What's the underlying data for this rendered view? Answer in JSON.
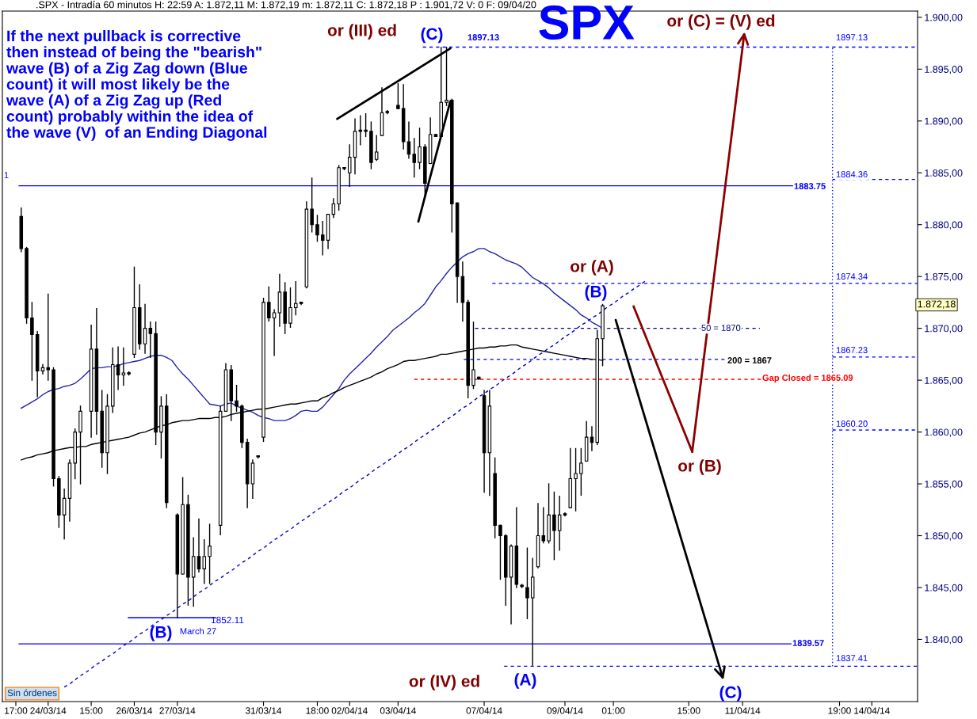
{
  "chart_data": {
    "type": "candlestick",
    "title": "SPX",
    "color": "#000000",
    "annotations": [
      ".SPX - Intradía 60 minutos H: 22:59 A: 1.872,11 M: 1.872,19 m: 1.872,11 C: 1.872,18 P : 1.901,72 V: 0 F: 09/04/20",
      "If the next pullback is corrective\nthen instead of being the \"bearish\"\nwave (B) of a Zig Zag down (Blue\ncount) it will most likely be the\nwave (A) of a Zig Zag up (Red\ncount) probably within the idea of\nthe wave (V)  of an Ending Diagonal",
      "Sin órdenes",
      "1.872,18",
      "1",
      "or (III) ed",
      {
        "text": "(C)",
        "y": 1897.1
      },
      "or (C) = (V) ed",
      "or (A)",
      "(B)",
      "or (B)",
      "1852.11",
      "(B)",
      "March 27",
      "or (IV) ed",
      "(A)",
      "(C)",
      "1897.13"
    ],
    "categories": [
      "17:00",
      null,
      null,
      null,
      null,
      null,
      "24/03/14",
      null,
      null,
      null,
      null,
      null,
      null,
      null,
      "15:00",
      null,
      null,
      null,
      null,
      null,
      null,
      null,
      "26/03/14",
      null,
      null,
      null,
      null,
      null,
      null,
      null,
      "27/03/14",
      null,
      null,
      null,
      null,
      null,
      null,
      null,
      null,
      null,
      null,
      null,
      null,
      null,
      null,
      null,
      "31/03/14",
      null,
      null,
      null,
      null,
      null,
      null,
      null,
      null,
      null,
      "18:00",
      null,
      null,
      null,
      null,
      null,
      "02/04/14",
      null,
      null,
      null,
      null,
      null,
      null,
      null,
      null,
      "03/04/14",
      null,
      null,
      null,
      null,
      null,
      null,
      null,
      null,
      null,
      null,
      null,
      null,
      null,
      null,
      null,
      "07/04/14",
      null,
      null,
      null,
      null,
      null,
      null,
      null,
      null,
      null,
      null,
      null,
      null,
      null,
      null,
      "09/04/14",
      null,
      null,
      null,
      null,
      null,
      null,
      null,
      null,
      "01:00",
      null,
      null,
      null,
      null,
      null,
      null,
      null,
      null,
      null,
      null,
      null,
      null,
      null,
      "15:00",
      null,
      null,
      null,
      null,
      null,
      null,
      null,
      null,
      null,
      "11/04/14",
      null,
      null,
      null,
      null,
      null,
      null,
      null,
      null,
      null,
      null,
      null,
      null,
      null,
      null,
      null,
      null,
      null,
      "19:00",
      null,
      null,
      null,
      null,
      null,
      "14/04/14",
      null,
      null,
      null,
      null,
      null,
      null,
      null,
      null
    ],
    "ohlc": [
      null,
      [
        1880.8,
        1881.6,
        1877.4,
        1877.7
      ],
      [
        1877.7,
        1877.8,
        1870.5,
        1871.0
      ],
      [
        1871.0,
        1872.5,
        1865.0,
        1869.4
      ],
      [
        1869.4,
        1869.7,
        1863.4,
        1865.9
      ],
      [
        1865.9,
        1866.5,
        1865.6,
        1866.2
      ],
      [
        1866.2,
        1873.3,
        1865.0,
        1866.0
      ],
      [
        1866.0,
        1866.2,
        1854.8,
        1855.5
      ],
      [
        1855.5,
        1855.7,
        1850.8,
        1852.0
      ],
      [
        1852.0,
        1854.5,
        1849.7,
        1853.6
      ],
      [
        1853.6,
        1857.3,
        1851.4,
        1857.0
      ],
      [
        1857.0,
        1860.3,
        1855.5,
        1860.0
      ],
      [
        1860.0,
        1862.5,
        1855.0,
        1862.0
      ],
      null,
      [
        1862.0,
        1870.3,
        1859.5,
        1868.0
      ],
      [
        1868.0,
        1871.9,
        1859.8,
        1862.0
      ],
      [
        1862.0,
        1864.0,
        1856.6,
        1858.0
      ],
      [
        1858.0,
        1863.6,
        1856.0,
        1862.5
      ],
      [
        1862.5,
        1868.1,
        1861.9,
        1866.5
      ],
      [
        1866.5,
        1868.2,
        1864.1,
        1865.5
      ],
      [
        1865.5,
        1868.1,
        1864.5,
        1865.7
      ],
      [
        1865.7,
        1865.8,
        1865.5,
        1865.6
      ],
      [
        1867.5,
        1875.9,
        1867.2,
        1872.0
      ],
      [
        1872.0,
        1874.2,
        1868.0,
        1868.5
      ],
      [
        1868.5,
        1872.3,
        1867.6,
        1870.0
      ],
      [
        1870.0,
        1870.6,
        1867.2,
        1869.5
      ],
      [
        1869.5,
        1870.6,
        1858.8,
        1860.0
      ],
      [
        1860.0,
        1863.4,
        1857.5,
        1862.5
      ],
      [
        1862.5,
        1863.6,
        1852.7,
        1853.2
      ],
      null,
      [
        1852.0,
        1852.1,
        1842.1,
        1846.3
      ],
      [
        1846.3,
        1855.6,
        1846.3,
        1853.0
      ],
      [
        1853.0,
        1853.9,
        1843.3,
        1846.0
      ],
      [
        1846.0,
        1849.8,
        1843.2,
        1848.0
      ],
      [
        1848.0,
        1851.6,
        1846.5,
        1846.8
      ],
      [
        1846.8,
        1849.6,
        1845.4,
        1848.0
      ],
      [
        1848.0,
        1851.1,
        1845.4,
        1849.0
      ],
      null,
      [
        1851.0,
        1862.5,
        1850.1,
        1862.0
      ],
      [
        1862.0,
        1866.6,
        1862.0,
        1866.0
      ],
      [
        1866.0,
        1866.4,
        1861.1,
        1863.0
      ],
      [
        1863.0,
        1864.5,
        1862.0,
        1862.5
      ],
      [
        1862.5,
        1862.6,
        1858.5,
        1859.0
      ],
      [
        1859.0,
        1859.3,
        1852.7,
        1855.0
      ],
      [
        1855.0,
        1857.3,
        1853.6,
        1857.0
      ],
      [
        1857.6,
        1857.7,
        1857.5,
        1857.6
      ],
      [
        1859.5,
        1872.9,
        1859.1,
        1872.5
      ],
      [
        1872.5,
        1874.0,
        1870.7,
        1871.0
      ],
      [
        1871.0,
        1871.8,
        1867.4,
        1871.5
      ],
      [
        1871.5,
        1875.2,
        1870.2,
        1873.5
      ],
      [
        1873.5,
        1874.4,
        1869.5,
        1870.5
      ],
      [
        1870.5,
        1873.9,
        1870.1,
        1872.0
      ],
      [
        1872.0,
        1874.5,
        1871.3,
        1872.4
      ],
      [
        1872.4,
        1872.5,
        1872.3,
        1872.4
      ],
      [
        1874.0,
        1882.2,
        1873.9,
        1881.5
      ],
      [
        1881.5,
        1884.5,
        1879.3,
        1880.0
      ],
      [
        1880.0,
        1880.9,
        1878.4,
        1879.0
      ],
      [
        1879.0,
        1880.3,
        1877.1,
        1878.5
      ],
      [
        1878.5,
        1881.0,
        1877.7,
        1881.0
      ],
      [
        1881.0,
        1882.5,
        1880.7,
        1882.0
      ],
      [
        1882.0,
        1885.7,
        1881.4,
        1885.5
      ],
      [
        1885.4,
        1885.5,
        1885.3,
        1885.4
      ],
      [
        1885.0,
        1887.7,
        1883.7,
        1886.5
      ],
      [
        1886.5,
        1890.2,
        1884.9,
        1889.0
      ],
      [
        1889.0,
        1890.5,
        1887.7,
        1889.0
      ],
      [
        1889.0,
        1890.7,
        1888.5,
        1889.0
      ],
      [
        1889.0,
        1889.9,
        1885.4,
        1886.0
      ],
      [
        1886.3,
        1888.6,
        1886.2,
        1887.0
      ],
      [
        1888.6,
        1893.2,
        1888.6,
        1890.8
      ],
      [
        1890.9,
        1891.0,
        1890.7,
        1890.8
      ],
      null,
      [
        1891.5,
        1893.6,
        1891.2,
        1891.2
      ],
      [
        1891.2,
        1893.5,
        1887.3,
        1888.0
      ],
      [
        1888.0,
        1889.9,
        1886.4,
        1886.8
      ],
      [
        1886.8,
        1888.3,
        1884.6,
        1886.0
      ],
      [
        1886.0,
        1889.3,
        1885.4,
        1887.5
      ],
      [
        1887.5,
        1887.7,
        1882.6,
        1884.0
      ],
      [
        1885.9,
        1890.3,
        1885.9,
        1888.7
      ],
      [
        1888.7,
        1888.7,
        1888.5,
        1888.5
      ],
      [
        1888.5,
        1897.1,
        1888.5,
        1891.8
      ],
      [
        1891.8,
        1897.1,
        1891.5,
        1892.0
      ],
      [
        1892.0,
        1892.1,
        1879.3,
        1882.0
      ],
      [
        1882.1,
        1882.1,
        1872.5,
        1875.0
      ],
      [
        1875.0,
        1876.4,
        1870.7,
        1872.5
      ],
      [
        1872.5,
        1872.7,
        1863.3,
        1864.5
      ],
      [
        1864.5,
        1870.6,
        1864.2,
        1866.0
      ],
      [
        1865.3,
        1865.3,
        1865.1,
        1865.1
      ],
      [
        1863.5,
        1864.0,
        1854.2,
        1858.0
      ],
      [
        1858.0,
        1864.0,
        1853.9,
        1862.5
      ],
      [
        1856.0,
        1857.5,
        1849.8,
        1851.0
      ],
      [
        1851.0,
        1851.0,
        1845.8,
        1850.0
      ],
      [
        1850.0,
        1850.1,
        1843.3,
        1846.0
      ],
      [
        1846.0,
        1849.1,
        1841.5,
        1849.0
      ],
      [
        1849.0,
        1852.7,
        1845.0,
        1845.3
      ],
      [
        1845.2,
        1845.3,
        1845.0,
        1845.1
      ],
      [
        1845.0,
        1848.8,
        1842.0,
        1844.0
      ],
      [
        1844.0,
        1847.8,
        1837.5,
        1846.0
      ],
      [
        1847.0,
        1853.1,
        1846.9,
        1850.0
      ],
      [
        1850.0,
        1852.7,
        1849.3,
        1849.5
      ],
      [
        1849.5,
        1855.0,
        1849.3,
        1852.0
      ],
      [
        1852.0,
        1854.2,
        1847.7,
        1850.5
      ],
      [
        1850.5,
        1853.8,
        1848.6,
        1852.0
      ],
      [
        1852.1,
        1852.2,
        1851.9,
        1852.0
      ],
      [
        1852.7,
        1858.4,
        1852.7,
        1855.5
      ],
      [
        1855.5,
        1858.4,
        1852.4,
        1856.0
      ],
      [
        1856.0,
        1858.4,
        1853.9,
        1857.0
      ],
      [
        1857.2,
        1861.0,
        1857.2,
        1859.5
      ],
      [
        1859.5,
        1860.5,
        1858.2,
        1859.0
      ],
      [
        1859.0,
        1869.8,
        1858.8,
        1869.0
      ],
      [
        1869.0,
        1872.3,
        1866.4,
        1872.18
      ],
      null,
      null,
      null,
      null,
      null,
      null,
      null,
      null,
      null,
      null,
      null,
      null,
      null,
      null,
      null,
      null,
      null,
      null,
      null,
      null,
      null,
      null,
      null,
      null,
      null,
      null,
      null,
      null,
      null,
      null,
      null,
      null,
      null,
      null,
      null,
      null,
      null,
      null,
      null,
      null,
      null,
      null,
      null,
      null,
      null,
      null,
      null,
      null,
      null,
      null,
      null,
      null,
      null,
      null,
      null,
      null,
      null,
      null
    ],
    "series": [
      {
        "type": "line",
        "color": "#2323a8",
        "line_style": "solid",
        "values": [
          null,
          1862.3,
          1862.6,
          1862.9,
          1863.2,
          1863.6,
          1863.9,
          1864.1,
          1864.2,
          1864.4,
          1864.5,
          1864.7,
          1865.1,
          1865.6,
          1866.1,
          1866.2,
          1866.2,
          1866.3,
          1866.3,
          1866.4,
          1866.6,
          1866.7,
          1866.8,
          1866.9,
          1867.1,
          1867.3,
          1867.4,
          1867.4,
          1867.2,
          1866.9,
          1866.2,
          1865.6,
          1865.1,
          1864.5,
          1863.9,
          1863.3,
          1862.7,
          1862.6,
          1862.5,
          1862.7,
          1862.8,
          1862.5,
          1862.3,
          1862.1,
          1861.9,
          1861.6,
          1861.4,
          1861.3,
          1861.1,
          1861.1,
          1861.1,
          1861.3,
          1861.6,
          1862.0,
          1862.1,
          1862.0,
          1862.0,
          1862.4,
          1863.0,
          1863.6,
          1864.2,
          1865.0,
          1865.6,
          1866.1,
          1866.6,
          1867.1,
          1867.6,
          1868.2,
          1868.7,
          1869.2,
          1869.8,
          1870.2,
          1870.6,
          1871.0,
          1871.5,
          1871.9,
          1872.4,
          1873.2,
          1874.0,
          1874.6,
          1875.3,
          1875.9,
          1876.4,
          1876.9,
          1877.2,
          1877.4,
          1877.7,
          1877.7,
          1877.4,
          1877.2,
          1876.9,
          1876.6,
          1876.4,
          1876.2,
          1875.9,
          1875.4,
          1874.9,
          1874.6,
          1874.3,
          1873.9,
          1873.4,
          1873.0,
          1872.6,
          1872.2,
          1871.8,
          1871.3,
          1871.0,
          1870.6,
          1870.3,
          1870.0,
          null,
          null,
          null,
          null,
          null,
          null,
          null,
          null,
          null,
          null,
          null,
          null,
          null,
          null,
          null,
          null,
          null,
          null,
          null,
          null,
          null,
          null,
          null,
          null,
          null,
          null,
          null,
          null,
          null,
          null,
          null,
          null,
          null,
          null,
          null,
          null,
          null,
          null,
          null,
          null,
          null,
          null,
          null,
          null,
          null,
          null,
          null,
          null,
          null,
          null,
          null,
          null,
          null,
          null,
          null,
          null,
          null,
          null
        ]
      },
      {
        "type": "line",
        "color": "#000000",
        "line_style": "solid",
        "values": [
          null,
          1857.3,
          1857.5,
          1857.6,
          1857.8,
          1857.9,
          1858.0,
          1858.2,
          1858.3,
          1858.4,
          1858.5,
          1858.5,
          1858.6,
          1858.6,
          1858.8,
          1858.9,
          1859.0,
          1859.1,
          1859.2,
          1859.3,
          1859.4,
          1859.5,
          1859.7,
          1859.9,
          1860.0,
          1860.2,
          1860.4,
          1860.6,
          1860.7,
          1860.9,
          1861.0,
          1861.1,
          1861.1,
          1861.2,
          1861.3,
          1861.3,
          1861.3,
          1861.4,
          1861.4,
          1861.5,
          1861.7,
          1861.8,
          1861.9,
          1862.0,
          1862.1,
          1862.2,
          1862.2,
          1862.3,
          1862.4,
          1862.5,
          1862.6,
          1862.7,
          1862.7,
          1862.8,
          1862.9,
          1863.0,
          1863.0,
          1863.3,
          1863.5,
          1863.8,
          1864.0,
          1864.3,
          1864.5,
          1864.7,
          1864.9,
          1865.1,
          1865.3,
          1865.6,
          1865.8,
          1866.1,
          1866.3,
          1866.5,
          1866.8,
          1866.9,
          1866.9,
          1867.0,
          1867.1,
          1867.2,
          1867.3,
          1867.5,
          1867.5,
          1867.6,
          1867.7,
          1867.8,
          1867.9,
          1868.0,
          1868.1,
          1868.1,
          1868.2,
          1868.2,
          1868.3,
          1868.3,
          1868.4,
          1868.4,
          1868.2,
          1868.1,
          1868.0,
          1867.9,
          1867.8,
          1867.7,
          1867.6,
          1867.5,
          1867.4,
          1867.3,
          1867.2,
          1867.1,
          1867.1,
          1867.0,
          1867.0,
          1866.9,
          null,
          null,
          null,
          null,
          null,
          null,
          null,
          null,
          null,
          null,
          null,
          null,
          null,
          null,
          null,
          null,
          null,
          null,
          null,
          null,
          null,
          null,
          null,
          null,
          null,
          null,
          null,
          null,
          null,
          null,
          null,
          null,
          null,
          null,
          null,
          null,
          null,
          null,
          null,
          null,
          null,
          null,
          null,
          null,
          null,
          null,
          null,
          null,
          null,
          null,
          null,
          null,
          null,
          null,
          null,
          null,
          null,
          null
        ]
      },
      {
        "type": "line",
        "color": "#0000cc",
        "line_style": "dashed",
        "values": [
          null,
          null,
          null,
          null,
          null,
          null,
          null,
          null,
          null,
          1835.4,
          1835.7,
          1836.1,
          1836.5,
          1836.8,
          1837.2,
          1837.6,
          1837.9,
          1838.3,
          1838.6,
          1839.0,
          1839.4,
          1839.7,
          1840.1,
          1840.5,
          1840.8,
          1841.2,
          1841.6,
          1841.9,
          1842.3,
          1842.6,
          1843.0,
          1843.4,
          1843.7,
          1844.1,
          1844.5,
          1844.8,
          1845.2,
          1845.6,
          1845.9,
          1846.3,
          1846.6,
          1847.0,
          1847.4,
          1847.7,
          1848.1,
          1848.5,
          1848.8,
          1849.2,
          1849.6,
          1849.9,
          1850.3,
          1850.6,
          1851.0,
          1851.4,
          1851.7,
          1852.1,
          1852.5,
          1852.8,
          1853.2,
          1853.5,
          1853.9,
          1854.3,
          1854.6,
          1855.0,
          1855.4,
          1855.7,
          1856.1,
          1856.5,
          1856.8,
          1857.2,
          1857.5,
          1857.9,
          1858.3,
          1858.6,
          1859.0,
          1859.4,
          1859.7,
          1860.1,
          1860.4,
          1860.8,
          1861.2,
          1861.5,
          1861.9,
          1862.3,
          1862.6,
          1863.0,
          1863.4,
          1863.7,
          1864.1,
          1864.4,
          1864.8,
          1865.2,
          1865.5,
          1865.9,
          1866.3,
          1866.6,
          1867.0,
          1867.4,
          1867.7,
          1868.1,
          1868.4,
          1868.8,
          1869.2,
          1869.5,
          1869.9,
          1870.3,
          1870.6,
          1871.0,
          1871.3,
          1871.7,
          1872.1,
          1872.4,
          1872.8,
          1873.2,
          1873.5,
          1873.9,
          1874.2,
          1874.6,
          null,
          null,
          null,
          null,
          null,
          null,
          null,
          null,
          null,
          null,
          null,
          null,
          null,
          null,
          null,
          null,
          null,
          null,
          null,
          null,
          null,
          null,
          null,
          null,
          null,
          null,
          null,
          null,
          null,
          null,
          null,
          null,
          null,
          null,
          null,
          null,
          null,
          null,
          null,
          null,
          null,
          null,
          null,
          null,
          null,
          null,
          null,
          null,
          null,
          null
        ]
      }
    ],
    "ref_lines": [
      {
        "axis": "y",
        "value": 1897.13,
        "label": "1897.13",
        "color": "#0000ff",
        "line_style": "dashed"
      },
      {
        "axis": "y",
        "value": 1884.36,
        "label": "1884.36",
        "color": "#0000ff",
        "line_style": "dashed"
      },
      {
        "axis": "y",
        "value": 1883.75,
        "label": "1883.75",
        "color": "#0000ff",
        "line_style": "solid"
      },
      {
        "axis": "y",
        "value": 1874.34,
        "label": "1874.34",
        "color": "#0000ff",
        "line_style": "dashed"
      },
      {
        "axis": "y",
        "value": 1870,
        "label": "50 = 1870",
        "color": "#000080",
        "line_style": "dashed"
      },
      {
        "axis": "y",
        "value": 1867,
        "label": "200 = 1867",
        "color": "#0000cc",
        "line_style": "dashed"
      },
      {
        "axis": "y",
        "value": 1867.23,
        "label": "1867.23",
        "color": "#0000ff",
        "line_style": "dashed"
      },
      {
        "axis": "y",
        "value": 1865.09,
        "label": "Gap Closed = 1865.09",
        "color": "#ff0000",
        "line_style": "dashed"
      },
      {
        "axis": "y",
        "value": 1860.2,
        "label": "1860.20",
        "color": "#0000ff",
        "line_style": "dashed"
      },
      {
        "axis": "y",
        "value": 1839.57,
        "label": "1839.57",
        "color": "#0000ff",
        "line_style": "solid"
      },
      {
        "axis": "y",
        "value": 1837.41,
        "label": "1837.41",
        "color": "#0000ff",
        "line_style": "dashed"
      },
      {
        "axis": "y",
        "value": 1842.1,
        "color": "#0000ff",
        "line_style": "solid"
      }
    ],
    "ylim": [
      1834,
      1900.6
    ],
    "yticks": [
      {
        "value": 1840,
        "label": "1.840,00"
      },
      {
        "value": 1845,
        "label": "1.845,00"
      },
      {
        "value": 1850,
        "label": "1.850,00"
      },
      {
        "value": 1855,
        "label": "1.855,00"
      },
      {
        "value": 1860,
        "label": "1.860,00"
      },
      {
        "value": 1865,
        "label": "1.865,00"
      },
      {
        "value": 1870,
        "label": "1.870,00"
      },
      {
        "value": 1875,
        "label": "1.875,00"
      },
      {
        "value": 1880,
        "label": "1.880,00"
      },
      {
        "value": 1885,
        "label": "1.885,00"
      },
      {
        "value": 1890,
        "label": "1.890,00"
      },
      {
        "value": 1895,
        "label": "1.895,00"
      },
      {
        "value": 1900,
        "label": "1.900,00"
      }
    ]
  }
}
